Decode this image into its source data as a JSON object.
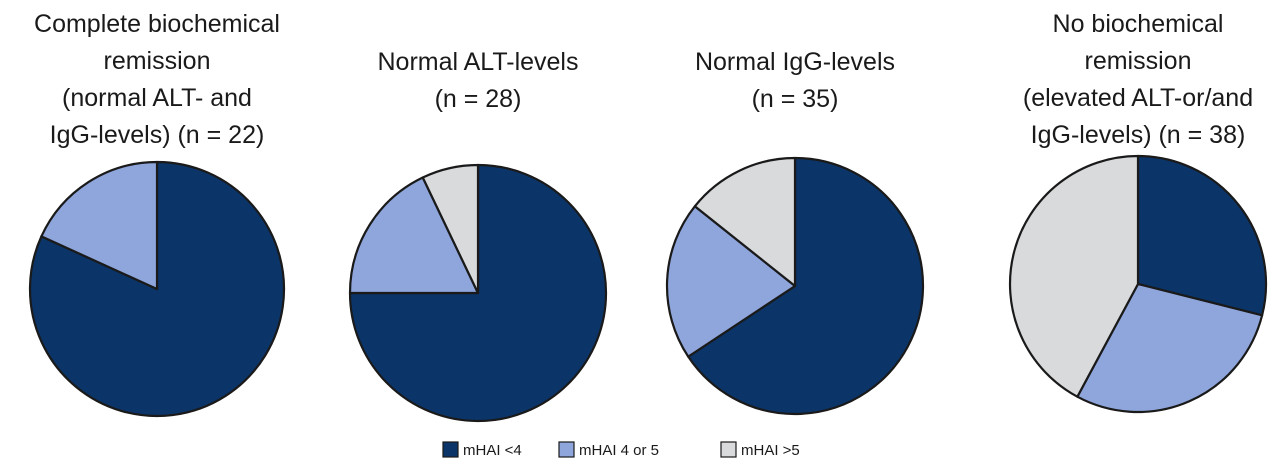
{
  "chart_data": [
    {
      "type": "pie",
      "title_lines": [
        "Complete biochemical",
        "remission",
        "(normal ALT- and",
        "IgG-levels) (n = 22)"
      ],
      "slices": [
        {
          "label": "mHAI <4",
          "value": 81.8
        },
        {
          "label": "mHAI 4 or 5",
          "value": 18.2
        },
        {
          "label": "mHAI >5",
          "value": 0
        }
      ]
    },
    {
      "type": "pie",
      "title_lines": [
        "Normal ALT-levels",
        "(n = 28)"
      ],
      "slices": [
        {
          "label": "mHAI <4",
          "value": 75.0
        },
        {
          "label": "mHAI 4 or 5",
          "value": 17.9
        },
        {
          "label": "mHAI >5",
          "value": 7.1
        }
      ]
    },
    {
      "type": "pie",
      "title_lines": [
        "Normal IgG-levels",
        "(n = 35)"
      ],
      "slices": [
        {
          "label": "mHAI <4",
          "value": 65.7
        },
        {
          "label": "mHAI 4 or 5",
          "value": 20.0
        },
        {
          "label": "mHAI >5",
          "value": 14.3
        }
      ]
    },
    {
      "type": "pie",
      "title_lines": [
        "No biochemical",
        "remission",
        "(elevated ALT-or/and",
        "IgG-levels) (n = 38)"
      ],
      "slices": [
        {
          "label": "mHAI <4",
          "value": 28.9
        },
        {
          "label": "mHAI 4 or 5",
          "value": 28.9
        },
        {
          "label": "mHAI >5",
          "value": 42.1
        }
      ]
    }
  ],
  "legend": [
    {
      "label": "mHAI <4",
      "color": "#0b3468"
    },
    {
      "label": "mHAI 4 or 5",
      "color": "#8fa6dc"
    },
    {
      "label": "mHAI >5",
      "color": "#d8dadc"
    }
  ],
  "colors": {
    "mHAI <4": "#0b3468",
    "mHAI 4 or 5": "#8fa6dc",
    "mHAI >5": "#d8dadc",
    "outline": "#1a1a1a"
  }
}
